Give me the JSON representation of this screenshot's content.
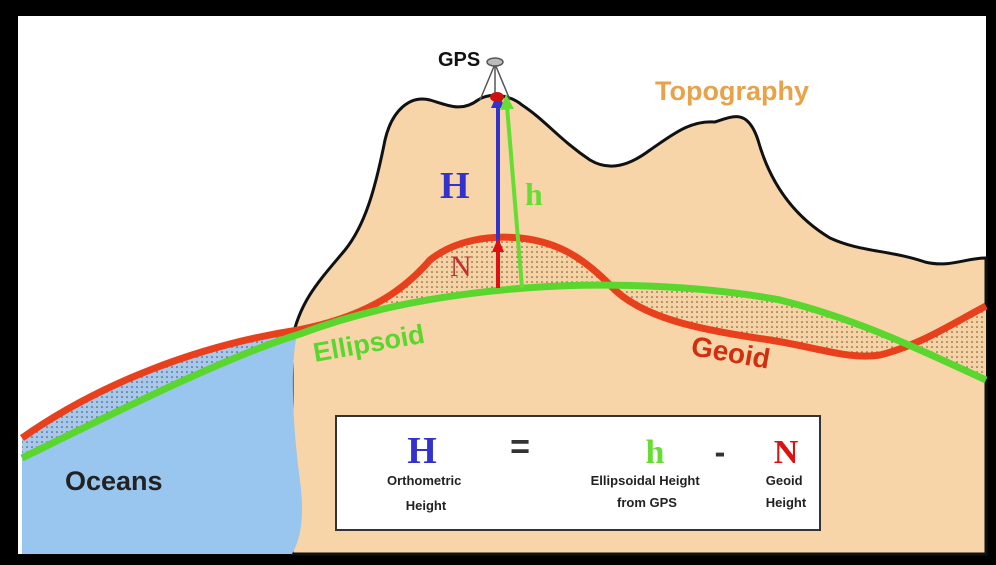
{
  "labels": {
    "gps": "GPS",
    "topography": "Topography",
    "H": "H",
    "h": "h",
    "N": "N",
    "ellipsoid": "Ellipsoid",
    "geoid": "Geoid",
    "oceans": "Oceans"
  },
  "formula": {
    "H": "H",
    "equals": "=",
    "h": "h",
    "minus": "-",
    "N": "N",
    "orthometric": [
      "Orthometric",
      "Height"
    ],
    "ellipsoidal": [
      "Ellipsoidal Height",
      "from GPS"
    ],
    "geoid": [
      "Geoid",
      "Height"
    ]
  }
}
